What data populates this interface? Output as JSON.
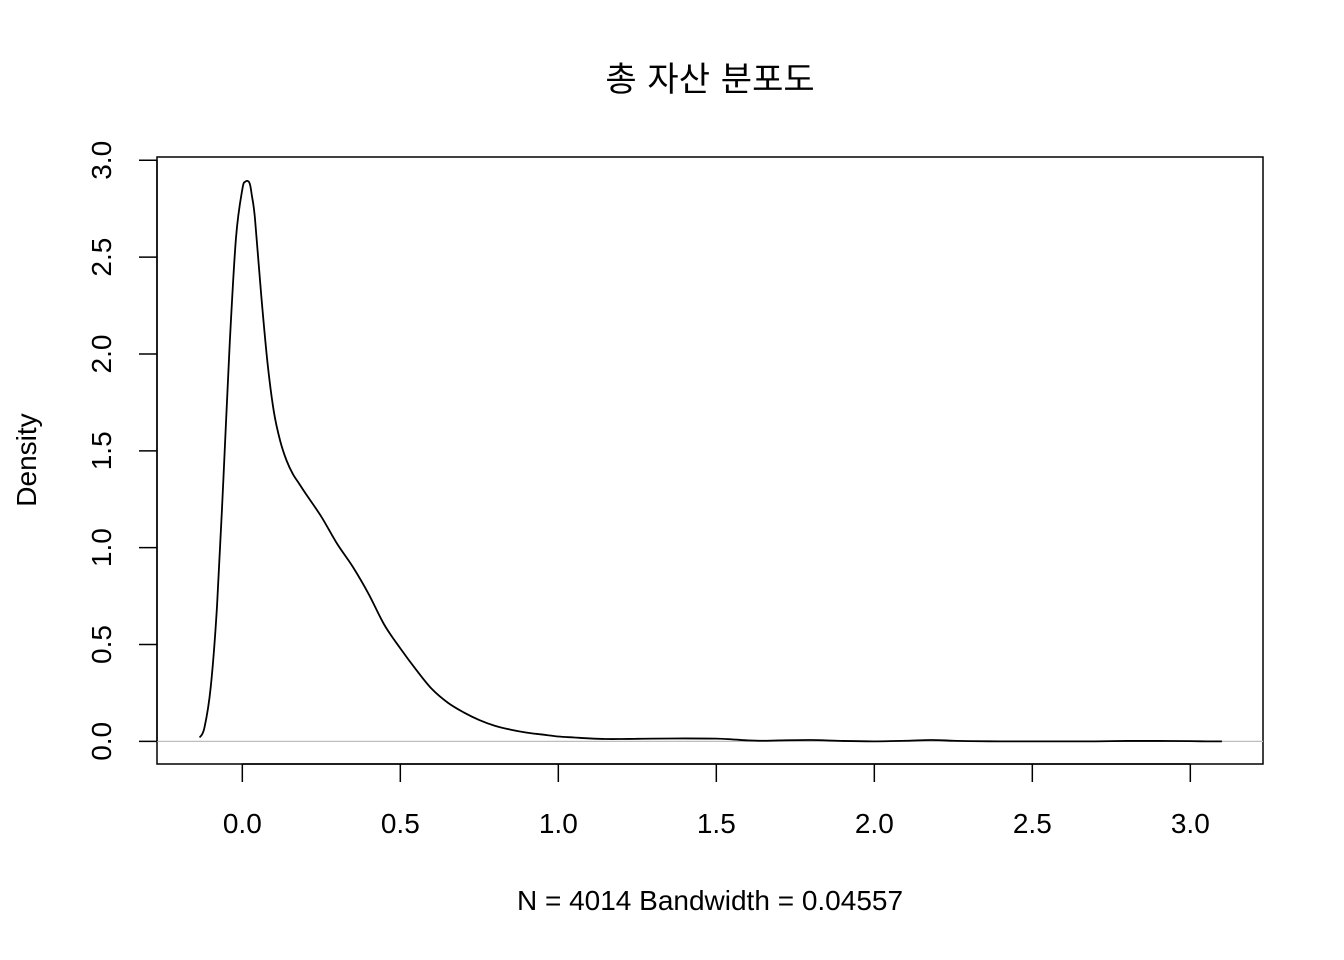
{
  "chart_data": {
    "type": "line",
    "title": "총 자산 분포도",
    "xlabel": "N = 4014   Bandwidth = 0.04557",
    "ylabel": "Density",
    "xlim": [
      -0.27,
      3.23
    ],
    "ylim": [
      -0.117,
      3.017
    ],
    "x_ticks": [
      "0.0",
      "0.5",
      "1.0",
      "1.5",
      "2.0",
      "2.5",
      "3.0"
    ],
    "y_ticks": [
      "0.0",
      "0.5",
      "1.0",
      "1.5",
      "2.0",
      "2.5",
      "3.0"
    ],
    "grid": false,
    "series": [
      {
        "x": [
          -0.135,
          -0.12,
          -0.1,
          -0.08,
          -0.06,
          -0.04,
          -0.02,
          0.0,
          0.01,
          0.02,
          0.025,
          0.03,
          0.04,
          0.06,
          0.08,
          0.1,
          0.12,
          0.14,
          0.16,
          0.18,
          0.2,
          0.25,
          0.3,
          0.35,
          0.4,
          0.45,
          0.5,
          0.55,
          0.6,
          0.65,
          0.7,
          0.75,
          0.8,
          0.85,
          0.9,
          0.95,
          1.0,
          1.05,
          1.1,
          1.15,
          1.2,
          1.25,
          1.3,
          1.4,
          1.5,
          1.55,
          1.6,
          1.65,
          1.7,
          1.8,
          1.9,
          2.0,
          2.1,
          2.18,
          2.25,
          2.3,
          2.4,
          2.5,
          2.6,
          2.7,
          2.8,
          2.9,
          3.0,
          3.05,
          3.1
        ],
        "y": [
          0.02,
          0.07,
          0.28,
          0.7,
          1.35,
          2.05,
          2.6,
          2.85,
          2.89,
          2.89,
          2.87,
          2.82,
          2.7,
          2.3,
          1.95,
          1.7,
          1.55,
          1.45,
          1.38,
          1.33,
          1.28,
          1.16,
          1.02,
          0.9,
          0.76,
          0.6,
          0.48,
          0.37,
          0.27,
          0.2,
          0.15,
          0.11,
          0.08,
          0.06,
          0.045,
          0.035,
          0.025,
          0.02,
          0.015,
          0.012,
          0.012,
          0.013,
          0.014,
          0.015,
          0.014,
          0.01,
          0.005,
          0.003,
          0.005,
          0.007,
          0.002,
          0.0,
          0.003,
          0.007,
          0.003,
          0.001,
          0.0,
          0.0,
          0.0,
          0.0,
          0.002,
          0.002,
          0.001,
          0.0,
          0.0
        ]
      }
    ]
  }
}
